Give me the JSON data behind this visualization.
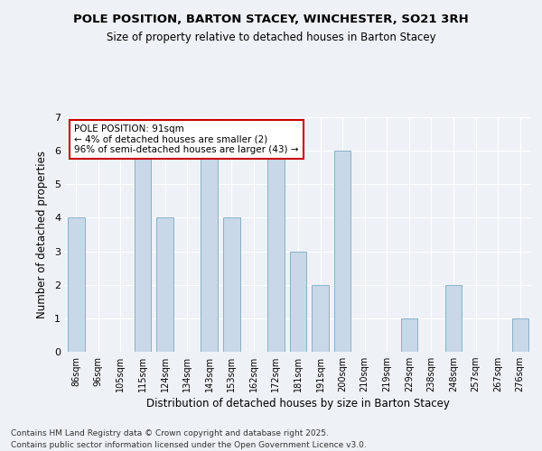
{
  "title": "POLE POSITION, BARTON STACEY, WINCHESTER, SO21 3RH",
  "subtitle": "Size of property relative to detached houses in Barton Stacey",
  "xlabel": "Distribution of detached houses by size in Barton Stacey",
  "ylabel": "Number of detached properties",
  "bar_color": "#c8d8e8",
  "bar_edge_color": "#7aaabf",
  "background_color": "#eef2f7",
  "categories": [
    "86sqm",
    "96sqm",
    "105sqm",
    "115sqm",
    "124sqm",
    "134sqm",
    "143sqm",
    "153sqm",
    "162sqm",
    "172sqm",
    "181sqm",
    "191sqm",
    "200sqm",
    "210sqm",
    "219sqm",
    "229sqm",
    "238sqm",
    "248sqm",
    "257sqm",
    "267sqm",
    "276sqm"
  ],
  "values": [
    4,
    0,
    0,
    6,
    4,
    0,
    6,
    4,
    0,
    6,
    3,
    2,
    6,
    0,
    0,
    1,
    0,
    2,
    0,
    0,
    1
  ],
  "ylim": [
    0,
    7
  ],
  "yticks": [
    0,
    1,
    2,
    3,
    4,
    5,
    6,
    7
  ],
  "annotation_title": "POLE POSITION: 91sqm",
  "annotation_line1": "← 4% of detached houses are smaller (2)",
  "annotation_line2": "96% of semi-detached houses are larger (43) →",
  "annotation_box_color": "#ffffff",
  "annotation_border_color": "#cc0000",
  "footnote1": "Contains HM Land Registry data © Crown copyright and database right 2025.",
  "footnote2": "Contains public sector information licensed under the Open Government Licence v3.0."
}
